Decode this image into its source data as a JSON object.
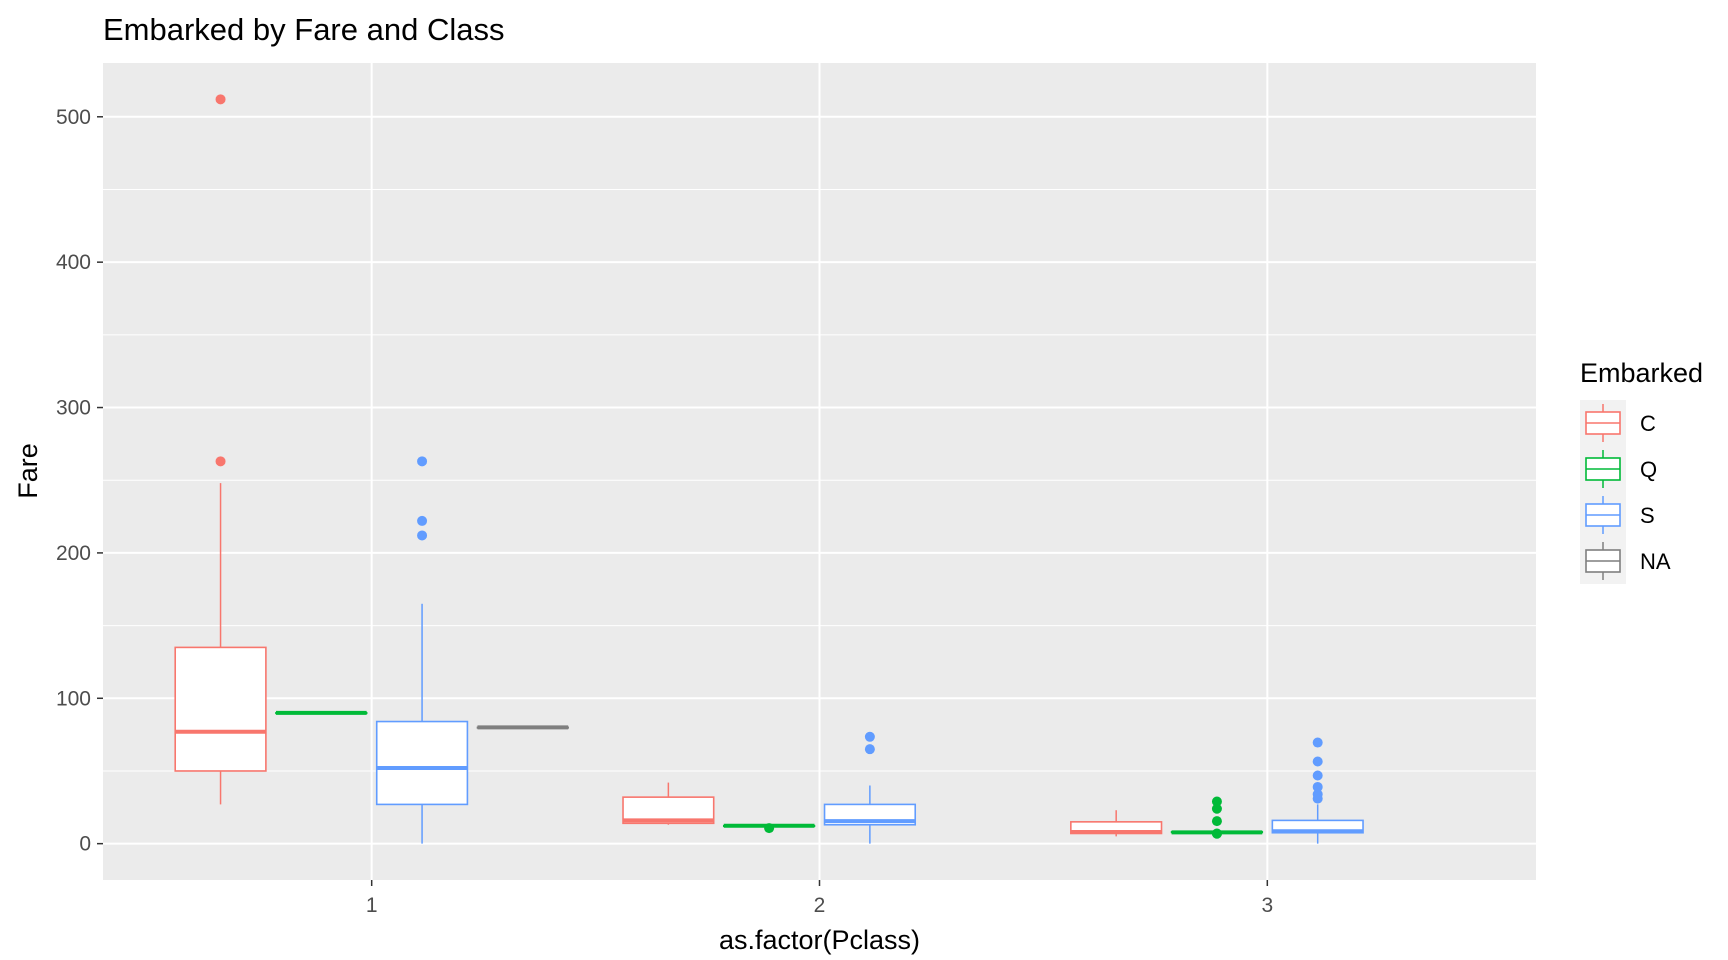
{
  "chart_data": {
    "type": "boxplot",
    "title": "Embarked by Fare and Class",
    "xlabel": "as.factor(Pclass)",
    "ylabel": "Fare",
    "categories": [
      "1",
      "2",
      "3"
    ],
    "ylim": [
      -25,
      537
    ],
    "yticks": [
      0,
      100,
      200,
      300,
      400,
      500
    ],
    "grid": true,
    "legend": {
      "title": "Embarked",
      "position": "right"
    },
    "series": [
      {
        "name": "C",
        "color": "#F8766D",
        "boxes": [
          {
            "category": "1",
            "lower": 27,
            "q1": 50,
            "median": 77,
            "q3": 135,
            "upper": 248,
            "outliers": [
              263,
              512
            ]
          },
          {
            "category": "2",
            "lower": 13,
            "q1": 14,
            "median": 16,
            "q3": 32,
            "upper": 42,
            "outliers": []
          },
          {
            "category": "3",
            "lower": 5,
            "q1": 7,
            "median": 8,
            "q3": 15,
            "upper": 23,
            "outliers": []
          }
        ]
      },
      {
        "name": "Q",
        "color": "#00BA38",
        "boxes": [
          {
            "category": "1",
            "lower": 90,
            "q1": 90,
            "median": 90,
            "q3": 90,
            "upper": 90,
            "outliers": []
          },
          {
            "category": "2",
            "lower": 12.35,
            "q1": 12.35,
            "median": 12.35,
            "q3": 12.35,
            "upper": 12.35,
            "outliers": [
              10.7
            ]
          },
          {
            "category": "3",
            "lower": 7.5,
            "q1": 7.75,
            "median": 7.75,
            "q3": 8.1,
            "upper": 8.5,
            "outliers": [
              6.8,
              7,
              15.5,
              24,
              29
            ]
          }
        ]
      },
      {
        "name": "S",
        "color": "#619CFF",
        "boxes": [
          {
            "category": "1",
            "lower": 0,
            "q1": 27,
            "median": 52,
            "q3": 84,
            "upper": 165,
            "outliers": [
              212,
              222,
              263
            ]
          },
          {
            "category": "2",
            "lower": 0,
            "q1": 13,
            "median": 15.5,
            "q3": 27,
            "upper": 40,
            "outliers": [
              65,
              73.5
            ]
          },
          {
            "category": "3",
            "lower": 0,
            "q1": 7.5,
            "median": 8.5,
            "q3": 16,
            "upper": 27,
            "outliers": [
              31,
              34,
              39,
              46.9,
              56.5,
              69.55
            ]
          }
        ]
      },
      {
        "name": "NA",
        "color": "#7F7F7F",
        "boxes": [
          {
            "category": "1",
            "lower": 80,
            "q1": 80,
            "median": 80,
            "q3": 80,
            "upper": 80,
            "outliers": []
          }
        ]
      }
    ]
  }
}
